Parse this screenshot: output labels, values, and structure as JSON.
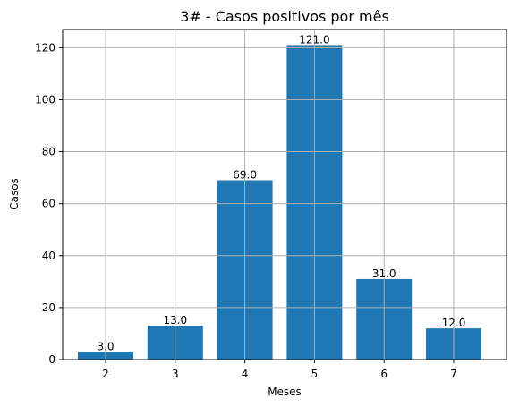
{
  "chart_data": {
    "type": "bar",
    "title": "3# - Casos positivos por mês",
    "xlabel": "Meses",
    "ylabel": "Casos",
    "categories": [
      "2",
      "3",
      "4",
      "5",
      "6",
      "7"
    ],
    "values": [
      3.0,
      13.0,
      69.0,
      121.0,
      31.0,
      12.0
    ],
    "data_labels": [
      "3.0",
      "13.0",
      "69.0",
      "121.0",
      "31.0",
      "12.0"
    ],
    "ylim": [
      0,
      127
    ],
    "yticks": [
      0,
      20,
      40,
      60,
      80,
      100,
      120
    ],
    "grid": true,
    "bar_color": "#1f77b4"
  }
}
